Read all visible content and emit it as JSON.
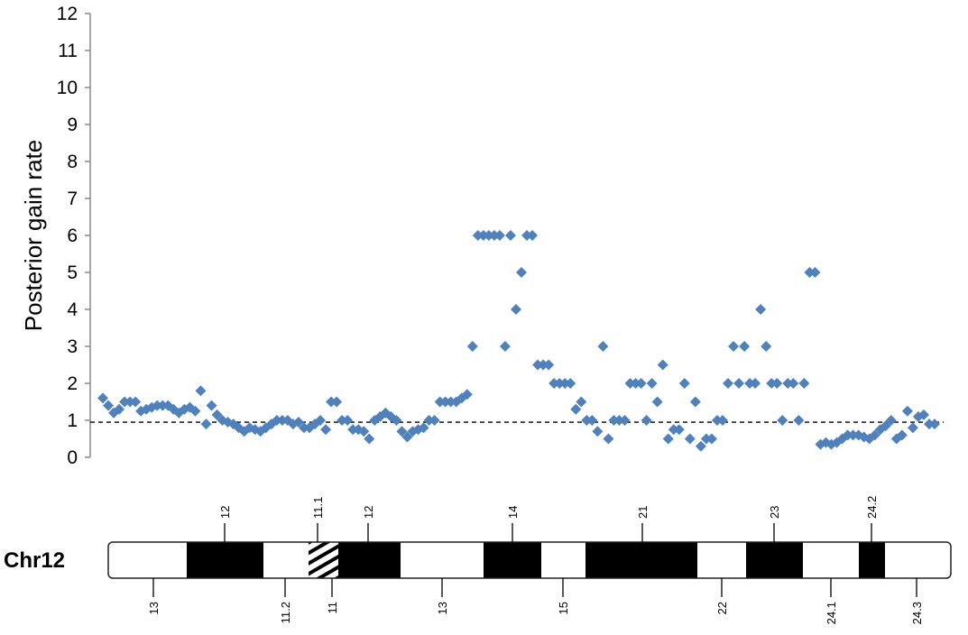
{
  "chart_data": {
    "type": "scatter",
    "ylabel": "Posterior gain rate",
    "ylim": [
      0,
      12
    ],
    "y_ticks": [
      "0",
      "1",
      "2",
      "3",
      "4",
      "5",
      "6",
      "7",
      "8",
      "9",
      "10",
      "11",
      "12"
    ],
    "reference_line": {
      "y": 0.95,
      "style": "dashed"
    },
    "marker": {
      "shape": "diamond",
      "color": "#4F81BD"
    },
    "series": [
      {
        "values": [
          1.6,
          1.4,
          1.2,
          1.3,
          1.5,
          1.5,
          1.5,
          1.25,
          1.3,
          1.35,
          1.4,
          1.4,
          1.4,
          1.3,
          1.2,
          1.3,
          1.35,
          1.25,
          1.8,
          0.9,
          1.4,
          1.15,
          1.0,
          0.95,
          0.9,
          0.8,
          0.7,
          0.8,
          0.75,
          0.7,
          0.8,
          0.9,
          1.0,
          1.0,
          1.0,
          0.9,
          0.95,
          0.8,
          0.8,
          0.9,
          1.0,
          0.75,
          1.5,
          1.5,
          1.0,
          1.0,
          0.75,
          0.75,
          0.7,
          0.5,
          1.0,
          1.1,
          1.2,
          1.1,
          1.0,
          0.7,
          0.55,
          0.7,
          0.75,
          0.8,
          1.0,
          1.0,
          1.5,
          1.5,
          1.5,
          1.5,
          1.6,
          1.7,
          3.0,
          6.0,
          6.0,
          6.0,
          6.0,
          6.0,
          3.0,
          6.0,
          4.0,
          5.0,
          6.0,
          6.0,
          2.5,
          2.5,
          2.5,
          2.0,
          2.0,
          2.0,
          2.0,
          1.3,
          1.5,
          1.0,
          1.0,
          0.7,
          3.0,
          0.5,
          1.0,
          1.0,
          1.0,
          2.0,
          2.0,
          2.0,
          1.0,
          2.0,
          1.5,
          2.5,
          0.5,
          0.75,
          0.75,
          2.0,
          0.5,
          1.5,
          0.3,
          0.5,
          0.5,
          1.0,
          1.0,
          2.0,
          3.0,
          2.0,
          3.0,
          2.0,
          2.0,
          4.0,
          3.0,
          2.0,
          2.0,
          1.0,
          2.0,
          2.0,
          1.0,
          2.0,
          5.0,
          5.0,
          0.35,
          0.4,
          0.35,
          0.4,
          0.5,
          0.6,
          0.6,
          0.6,
          0.55,
          0.5,
          0.6,
          0.75,
          0.85,
          1.0,
          0.5,
          0.6,
          1.25,
          0.8,
          1.1,
          1.15,
          0.9,
          0.9
        ]
      }
    ]
  },
  "ideogram": {
    "chromosome_label": "Chr12",
    "bands": [
      {
        "name": "13",
        "stain": "white",
        "label_side": "bottom"
      },
      {
        "name": "12",
        "stain": "black",
        "label_side": "top"
      },
      {
        "name": "11.2",
        "stain": "white",
        "label_side": "bottom"
      },
      {
        "name": "11.1",
        "stain": "hatched",
        "label_side": "top"
      },
      {
        "name": "11",
        "stain": "hatched",
        "label_side": "bottom"
      },
      {
        "name": "12",
        "stain": "black",
        "label_side": "top"
      },
      {
        "name": "13",
        "stain": "white",
        "label_side": "bottom"
      },
      {
        "name": "14",
        "stain": "black",
        "label_side": "top"
      },
      {
        "name": "15",
        "stain": "white",
        "label_side": "bottom"
      },
      {
        "name": "21",
        "stain": "black",
        "label_side": "top"
      },
      {
        "name": "22",
        "stain": "white",
        "label_side": "bottom"
      },
      {
        "name": "23",
        "stain": "black",
        "label_side": "top"
      },
      {
        "name": "24.1",
        "stain": "white",
        "label_side": "bottom"
      },
      {
        "name": "24.2",
        "stain": "black",
        "label_side": "top"
      },
      {
        "name": "24.3",
        "stain": "white",
        "label_side": "bottom"
      }
    ]
  }
}
